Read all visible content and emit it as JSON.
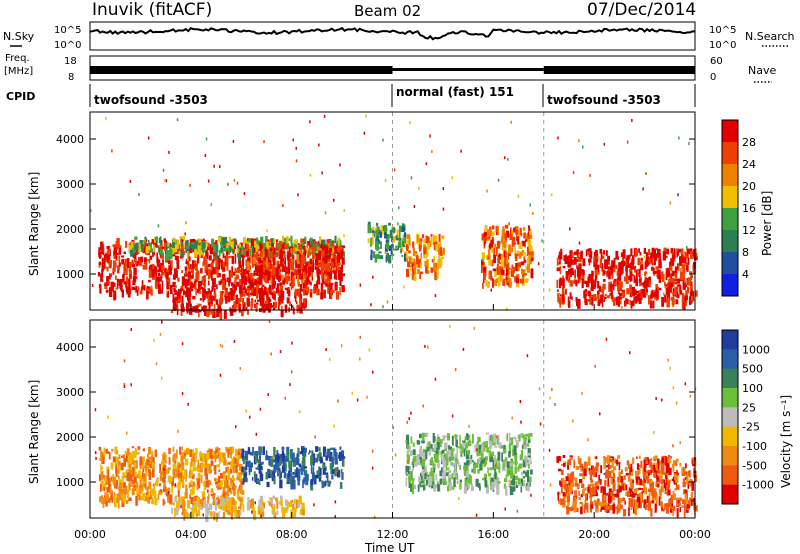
{
  "header": {
    "station": "Inuvik (fitACF)",
    "beam": "Beam 02",
    "date": "07/Dec/2014"
  },
  "sky_panel": {
    "left_label": "N.Sky",
    "right_label": "N.Search",
    "ticks": [
      "10^5",
      "10^0"
    ]
  },
  "freq_panel": {
    "left_label_1": "Freq.",
    "left_label_2": "[MHz]",
    "left_ticks": [
      "18",
      "8"
    ],
    "right_label": "Nave",
    "right_ticks": [
      "60",
      "0"
    ]
  },
  "cpid_panel": {
    "label": "CPID",
    "segments": [
      {
        "name": "twofsound -3503",
        "start_hour": 0,
        "end_hour": 12
      },
      {
        "name": "normal (fast) 151",
        "start_hour": 12,
        "end_hour": 18
      },
      {
        "name": "twofsound -3503",
        "start_hour": 18,
        "end_hour": 24
      }
    ]
  },
  "x_axis": {
    "label": "Time UT",
    "ticks": [
      "00:00",
      "04:00",
      "08:00",
      "12:00",
      "16:00",
      "20:00",
      "00:00"
    ]
  },
  "power_colorbar": {
    "label": "Power [dB]",
    "ticks": [
      "28",
      "24",
      "20",
      "16",
      "12",
      "8",
      "4"
    ],
    "colors": [
      "#e00000",
      "#f04000",
      "#f08000",
      "#f0c000",
      "#40a040",
      "#2a8050",
      "#204fa0",
      "#1020e0"
    ]
  },
  "velocity_colorbar": {
    "label": "Velocity [m s⁻¹]",
    "ticks": [
      "1000",
      "500",
      "100",
      "25",
      "-25",
      "-100",
      "-500",
      "-1000"
    ],
    "colors": [
      "#203c9c",
      "#2a5ea8",
      "#3a8058",
      "#6cbf3a",
      "#bcbcbc",
      "#f0b800",
      "#f08a10",
      "#f05a10",
      "#e00000"
    ]
  },
  "chart_data": [
    {
      "type": "heatmap",
      "title": "Inuvik (fitACF)",
      "xlabel": "Time UT",
      "ylabel": "Slant Range [km]",
      "xlim": [
        0,
        24
      ],
      "ylim": [
        200,
        4600
      ],
      "yticks": [
        "1000",
        "2000",
        "3000",
        "4000"
      ],
      "colorbar": "Power [dB]",
      "regions": [
        {
          "x": [
            0.3,
            10.0
          ],
          "y": [
            600,
            1800
          ],
          "value": 28
        },
        {
          "x": [
            1.5,
            10.0
          ],
          "y": [
            1500,
            1850
          ],
          "value": 12
        },
        {
          "x": [
            3.2,
            8.5
          ],
          "y": [
            200,
            700
          ],
          "value": 28
        },
        {
          "x": [
            6.0,
            10.0
          ],
          "y": [
            900,
            1700
          ],
          "value": 26
        },
        {
          "x": [
            11.0,
            12.5
          ],
          "y": [
            1400,
            2200
          ],
          "value": 10
        },
        {
          "x": [
            12.5,
            14.0
          ],
          "y": [
            1000,
            1900
          ],
          "value": 20
        },
        {
          "x": [
            15.5,
            17.5
          ],
          "y": [
            800,
            2100
          ],
          "value": 22
        },
        {
          "x": [
            18.5,
            24.0
          ],
          "y": [
            400,
            1600
          ],
          "value": 28
        }
      ]
    },
    {
      "type": "heatmap",
      "xlabel": "Time UT",
      "ylabel": "Slant Range [km]",
      "xlim": [
        0,
        24
      ],
      "ylim": [
        200,
        4600
      ],
      "yticks": [
        "1000",
        "2000",
        "3000",
        "4000"
      ],
      "colorbar": "Velocity [m s⁻¹]",
      "regions": [
        {
          "x": [
            0.3,
            6.0
          ],
          "y": [
            600,
            1800
          ],
          "value": -300
        },
        {
          "x": [
            6.0,
            10.0
          ],
          "y": [
            1000,
            1800
          ],
          "value": 600
        },
        {
          "x": [
            3.2,
            8.5
          ],
          "y": [
            300,
            700
          ],
          "value": -40
        },
        {
          "x": [
            12.5,
            17.5
          ],
          "y": [
            900,
            2100
          ],
          "value": 100
        },
        {
          "x": [
            18.5,
            24.0
          ],
          "y": [
            400,
            1600
          ],
          "value": -500
        }
      ]
    }
  ]
}
